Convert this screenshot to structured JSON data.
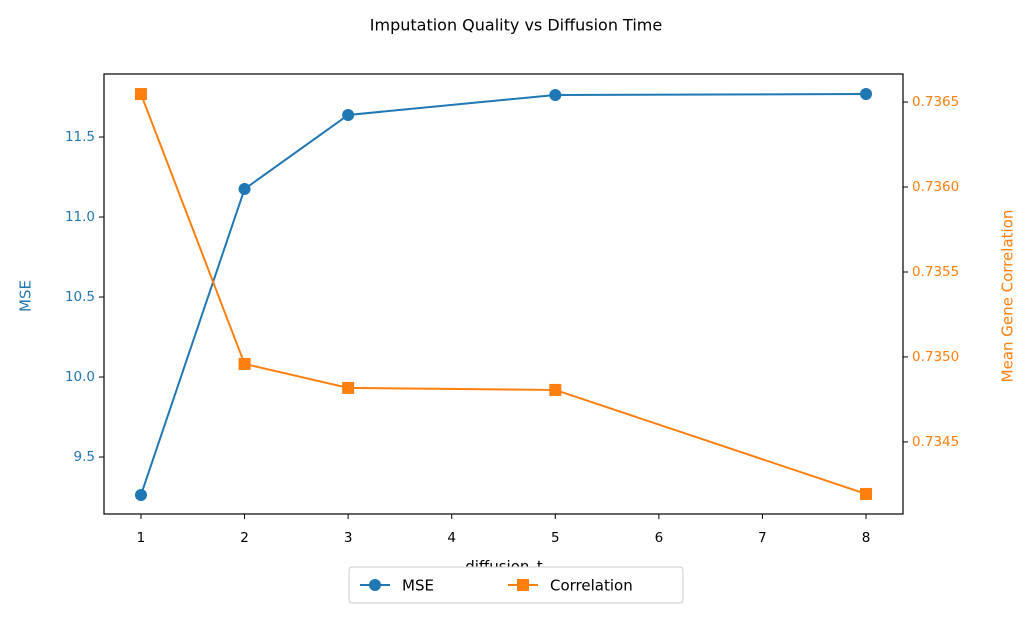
{
  "chart_data": {
    "type": "line",
    "title": "Imputation Quality vs Diffusion Time",
    "xlabel": "diffusion_t",
    "ylabel": "MSE",
    "y2label": "Mean Gene Correlation",
    "x": [
      1,
      2,
      3,
      5,
      8
    ],
    "series": [
      {
        "name": "MSE",
        "color": "#1f77b4",
        "marker": "circle",
        "values": [
          9.263,
          11.175,
          11.638,
          11.763,
          11.769
        ]
      },
      {
        "name": "Correlation",
        "color": "#ff7f0e",
        "marker": "square",
        "axis": "y2",
        "values": [
          0.736547,
          0.734959,
          0.734818,
          0.734806,
          0.734194
        ]
      }
    ],
    "xlim": [
      0.643,
      8.357
    ],
    "xticks": [
      1,
      2,
      3,
      4,
      5,
      6,
      7,
      8
    ],
    "ylim": [
      9.144,
      11.894
    ],
    "yticks": [
      9.5,
      {
        "value": 10,
        "label": "10.0"
      },
      10.5,
      {
        "value": 11,
        "label": "11.0"
      },
      11.5
    ],
    "y2lim": [
      0.734076,
      0.736665
    ],
    "y2ticks": [
      0.7345,
      {
        "value": 0.735,
        "label": "0.7350"
      },
      0.7355,
      {
        "value": 0.736,
        "label": "0.7360"
      },
      0.7365
    ],
    "legend": "lower center outside"
  }
}
